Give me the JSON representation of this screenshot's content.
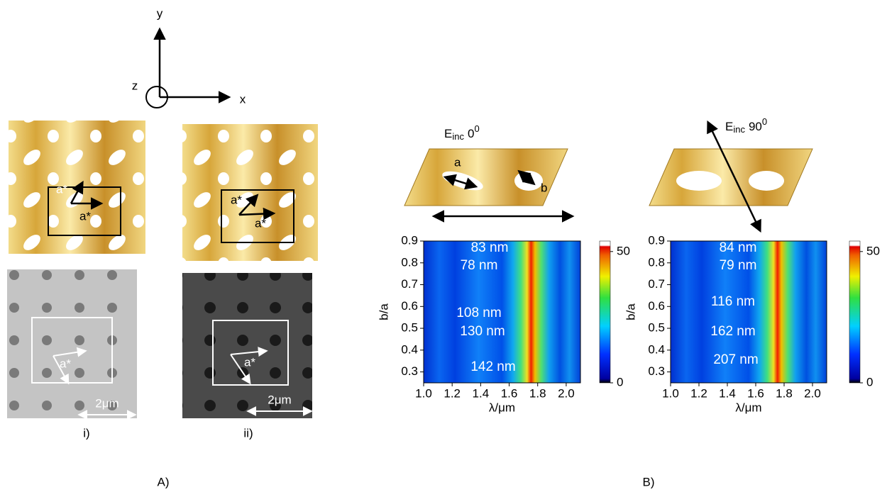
{
  "panel_a": {
    "label": "A)",
    "axes": {
      "x": "x",
      "y": "y",
      "z": "z"
    },
    "gold_i": {
      "vector_labels": [
        "a*",
        "a*"
      ]
    },
    "gold_ii": {
      "vector_labels": [
        "a*",
        "a*"
      ]
    },
    "sem_i": {
      "vector_label": "a*",
      "scale": "2μm"
    },
    "sem_ii": {
      "vector_label": "a*",
      "scale": "2μm"
    },
    "captions": [
      "i)",
      "ii)"
    ]
  },
  "panel_b": {
    "label": "B)",
    "maps": [
      {
        "field": {
          "symbol": "E",
          "subscript": "inc",
          "angle": "0",
          "degree": "0"
        },
        "schematic_labels": [
          "a",
          "b"
        ],
        "x_label": "λ/μm",
        "y_label": "b/a",
        "xlim": [
          1.0,
          2.1
        ],
        "ylim": [
          0.25,
          0.9
        ],
        "xticks": [
          {
            "value": 1.0,
            "label": "1.0"
          },
          1.2,
          1.4,
          1.6,
          1.8,
          {
            "value": 2.0,
            "label": "2.0"
          }
        ],
        "yticks": [
          0.3,
          0.4,
          0.5,
          0.6,
          0.7,
          0.8,
          0.9
        ],
        "colorbar": {
          "clim": [
            0,
            54
          ],
          "ticks": [
            0,
            50
          ]
        },
        "annotations": [
          "83 nm",
          "78 nm",
          "108 nm",
          "130 nm",
          "142 nm"
        ]
      },
      {
        "field": {
          "symbol": "E",
          "subscript": "inc",
          "angle": "90",
          "degree": "0"
        },
        "schematic_labels": [],
        "x_label": "λ/μm",
        "y_label": "b/a",
        "xlim": [
          1.0,
          2.1
        ],
        "ylim": [
          0.25,
          0.9
        ],
        "xticks": [
          {
            "value": 1.0,
            "label": "1.0"
          },
          1.2,
          1.4,
          1.6,
          1.8,
          {
            "value": 2.0,
            "label": "2.0"
          }
        ],
        "yticks": [
          0.3,
          0.4,
          0.5,
          0.6,
          0.7,
          0.8,
          0.9
        ],
        "colorbar": {
          "clim": [
            0,
            54
          ],
          "ticks": [
            0,
            50
          ]
        },
        "annotations": [
          "84 nm",
          "79 nm",
          "116 nm",
          "162 nm",
          "207 nm"
        ]
      }
    ]
  }
}
